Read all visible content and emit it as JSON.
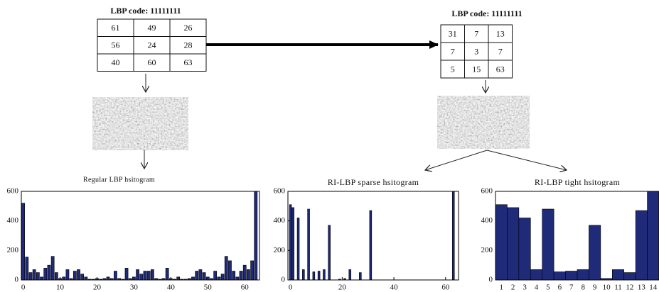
{
  "diagram": {
    "left": {
      "label": "LBP code: 11111111",
      "grid": [
        [
          61,
          49,
          26
        ],
        [
          56,
          24,
          28
        ],
        [
          40,
          60,
          63
        ]
      ]
    },
    "right": {
      "label": "LBP code: 11111111",
      "grid": [
        [
          31,
          7,
          13
        ],
        [
          7,
          3,
          7
        ],
        [
          5,
          15,
          63
        ]
      ]
    }
  },
  "chart_data": [
    {
      "type": "bar",
      "title": "Regular LBP hsitogram",
      "color": "#1f2a78",
      "x": [
        0,
        1,
        2,
        3,
        4,
        5,
        6,
        7,
        8,
        9,
        10,
        11,
        12,
        13,
        14,
        15,
        16,
        17,
        18,
        19,
        20,
        21,
        22,
        23,
        24,
        25,
        26,
        27,
        28,
        29,
        30,
        31,
        32,
        33,
        34,
        35,
        36,
        37,
        38,
        39,
        40,
        41,
        42,
        43,
        44,
        45,
        46,
        47,
        48,
        49,
        50,
        51,
        52,
        53,
        54,
        55,
        56,
        57,
        58,
        59,
        60,
        61,
        62,
        63
      ],
      "values": [
        520,
        155,
        50,
        70,
        50,
        20,
        80,
        100,
        160,
        50,
        10,
        20,
        70,
        10,
        60,
        70,
        40,
        20,
        5,
        5,
        10,
        5,
        10,
        20,
        10,
        60,
        10,
        5,
        80,
        10,
        20,
        70,
        40,
        60,
        60,
        70,
        10,
        5,
        10,
        80,
        10,
        5,
        20,
        5,
        5,
        10,
        20,
        60,
        70,
        50,
        20,
        10,
        60,
        20,
        40,
        160,
        130,
        60,
        20,
        60,
        100,
        70,
        130,
        600
      ],
      "xlim": [
        -0.5,
        64
      ],
      "xticks": [
        0,
        10,
        20,
        30,
        40,
        50,
        60
      ],
      "ylim": [
        0,
        600
      ],
      "yticks": [
        0,
        200,
        400,
        600
      ]
    },
    {
      "type": "bar",
      "title": "RI-LBP sparse hsitogram",
      "color": "#1f2a78",
      "x": [
        0,
        1,
        3,
        5,
        7,
        9,
        11,
        13,
        15,
        19,
        21,
        23,
        27,
        31,
        63
      ],
      "values": [
        510,
        490,
        420,
        70,
        480,
        55,
        60,
        70,
        370,
        5,
        10,
        70,
        50,
        470,
        600
      ],
      "xlim": [
        -1,
        65
      ],
      "xticks": [
        0,
        20,
        40,
        60
      ],
      "ylim": [
        0,
        600
      ],
      "yticks": [
        0,
        200,
        400,
        600
      ]
    },
    {
      "type": "bar",
      "title": "RI-LBP tight hsitogram",
      "color": "#1f2a78",
      "categories": [
        "1",
        "2",
        "3",
        "4",
        "5",
        "6",
        "7",
        "8",
        "9",
        "10",
        "11",
        "12",
        "13",
        "14"
      ],
      "values": [
        510,
        490,
        420,
        70,
        480,
        55,
        60,
        70,
        370,
        10,
        70,
        50,
        470,
        600
      ],
      "ylim": [
        0,
        600
      ],
      "yticks": [
        0,
        200,
        400,
        600
      ]
    }
  ]
}
